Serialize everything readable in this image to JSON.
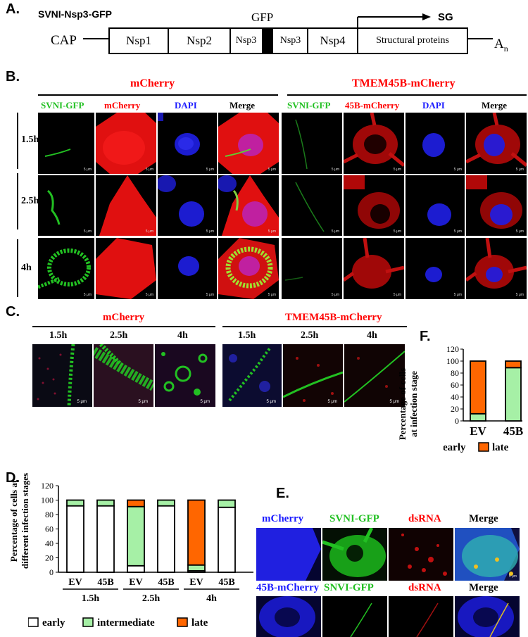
{
  "panelA": {
    "letter": "A.",
    "construct": "SVNI-Nsp3-GFP",
    "gfp": "GFP",
    "sg": "SG",
    "cap": "CAP",
    "tail": "A",
    "tail_sub": "n",
    "genes": [
      "Nsp1",
      "Nsp2",
      "Nsp3",
      "Nsp3",
      "Nsp4",
      "Structural proteins"
    ]
  },
  "panelB": {
    "letter": "B.",
    "group1": "mCherry",
    "group2": "TMEM45B-mCherry",
    "cols1": [
      "SVNI-GFP",
      "mCherry",
      "DAPI",
      "Merge"
    ],
    "cols2": [
      "SVNI-GFP",
      "45B-mCherry",
      "DAPI",
      "Merge"
    ],
    "times": [
      "1.5h",
      "2.5h",
      "4h"
    ],
    "scale": "5 μm"
  },
  "panelC": {
    "letter": "C.",
    "group1": "mCherry",
    "group2": "TMEM45B-mCherry",
    "times": [
      "1.5h",
      "2.5h",
      "4h"
    ],
    "scale": "5 μm"
  },
  "panelD": {
    "letter": "D.",
    "ylabel1": "Percentage of cells at",
    "ylabel2": "different infection stages"
  },
  "panelE": {
    "letter": "E.",
    "row1": [
      "mCherry",
      "SVNI-GFP",
      "dsRNA",
      "Merge"
    ],
    "row2": [
      "45B-mCherry",
      "SNVI-GFP",
      "dsRNA",
      "Merge"
    ]
  },
  "panelF": {
    "letter": "F.",
    "ylabel1": "Percentage of cells",
    "ylabel2": "at infection stage"
  },
  "colors": {
    "early": "#ffffff",
    "intermediate": "#a6f0a6",
    "late": "#ff6600",
    "gfp": "#22c022",
    "mcherry": "#ff0000",
    "dapi": "#1a1aff"
  },
  "chart_data": [
    {
      "type": "bar",
      "stacked": true,
      "categories": [
        "EV",
        "45B",
        "EV",
        "45B",
        "EV",
        "45B"
      ],
      "groups": [
        "1.5h",
        "2.5h",
        "4h"
      ],
      "series": [
        {
          "name": "early",
          "values": [
            92,
            92,
            9,
            92,
            2,
            90
          ]
        },
        {
          "name": "intermediate",
          "values": [
            8,
            8,
            82,
            8,
            8,
            10
          ]
        },
        {
          "name": "late",
          "values": [
            0,
            0,
            9,
            0,
            90,
            0
          ]
        }
      ],
      "ylim": [
        0,
        120
      ],
      "yticks": [
        0,
        20,
        40,
        60,
        80,
        100,
        120
      ],
      "ylabel": "Percentage of cells at different infection stages",
      "legend": "bottom"
    },
    {
      "type": "bar",
      "stacked": true,
      "categories": [
        "EV",
        "45B"
      ],
      "series": [
        {
          "name": "early",
          "values": [
            12,
            89
          ]
        },
        {
          "name": "late",
          "values": [
            88,
            11
          ]
        }
      ],
      "ylim": [
        0,
        120
      ],
      "yticks": [
        0,
        20,
        40,
        60,
        80,
        100,
        120
      ],
      "ylabel": "Percentage of cells at infection stage",
      "legend": "bottom"
    }
  ]
}
